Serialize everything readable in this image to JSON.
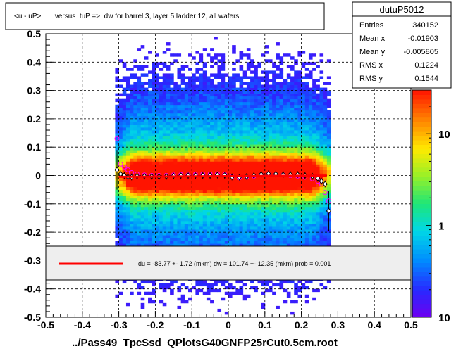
{
  "chart_data": {
    "type": "heatmap",
    "title": "<u - uP>       versus  tuP =>  dw for barrel 3, layer 5 ladder 12, all wafers",
    "xlabel": "../Pass49_TpcSsd_QPlotsG40GNFP25rCut0.5cm.root",
    "ylabel": "",
    "xlim": [
      -0.5,
      0.5
    ],
    "ylim": [
      -0.5,
      0.5
    ],
    "x_ticks": [
      "-0.5",
      "-0.4",
      "-0.3",
      "-0.2",
      "-0.1",
      "0",
      "0.1",
      "0.2",
      "0.3",
      "0.4",
      "0.5"
    ],
    "y_ticks": [
      "-0.5",
      "-0.4",
      "-0.3",
      "-0.2",
      "-0.1",
      "0",
      "0.1",
      "0.2",
      "0.3",
      "0.4",
      "0.5"
    ],
    "grid": true,
    "z_scale": "log",
    "z_ticks": [
      "1",
      "10"
    ],
    "z_ticks_values": [
      1,
      10
    ],
    "z_range": [
      0.1,
      30
    ],
    "occupied_x_range": [
      -0.31,
      0.28
    ],
    "stats": {
      "name": "dutuP5012",
      "rows": [
        {
          "label": "Entries",
          "value": "340152"
        },
        {
          "label": "Mean x",
          "value": "-0.01903"
        },
        {
          "label": "Mean y",
          "value": "-0.005805"
        },
        {
          "label": "RMS x",
          "value": "0.1224"
        },
        {
          "label": "RMS y",
          "value": "0.1544"
        }
      ]
    },
    "fit_legend": "du =  -83.77 +-  1.72 (mkm) dw =  101.74 +- 12.35 (mkm) prob = 0.001",
    "fit_line": {
      "x": [
        -0.3,
        0.27
      ],
      "y": [
        -0.0046,
        -0.0002
      ],
      "color": "#ff0000"
    },
    "profile_black": {
      "x": [
        -0.305,
        -0.295,
        -0.285,
        -0.275,
        -0.265,
        -0.25,
        -0.23,
        -0.21,
        -0.19,
        -0.17,
        -0.15,
        -0.13,
        -0.11,
        -0.09,
        -0.07,
        -0.05,
        -0.03,
        -0.01,
        0.01,
        0.03,
        0.05,
        0.07,
        0.09,
        0.11,
        0.13,
        0.15,
        0.17,
        0.19,
        0.21,
        0.23,
        0.245,
        0.255,
        0.265,
        0.275
      ],
      "y": [
        0.02,
        0.005,
        0.0,
        -0.005,
        -0.005,
        -0.002,
        -0.002,
        -0.003,
        -0.004,
        -0.003,
        -0.001,
        0.0,
        0.0,
        0.0,
        0.0,
        0.0,
        0.002,
        0.001,
        -0.005,
        -0.006,
        -0.004,
        0.0,
        0.004,
        0.006,
        0.005,
        0.003,
        0.003,
        0.003,
        0.0,
        -0.003,
        -0.01,
        -0.02,
        -0.03,
        -0.125
      ]
    },
    "profile_magenta": {
      "x": [
        -0.305,
        -0.295,
        -0.285,
        -0.275,
        -0.265,
        -0.25,
        -0.23,
        -0.21,
        -0.19,
        -0.17,
        -0.15,
        -0.13,
        -0.11,
        -0.09,
        -0.07,
        -0.05,
        -0.03,
        -0.01,
        0.01,
        0.03,
        0.05,
        0.07,
        0.09,
        0.11,
        0.13,
        0.15,
        0.17,
        0.19,
        0.21,
        0.23,
        0.245,
        0.255,
        0.265,
        0.275
      ],
      "y": [
        0.13,
        0.04,
        0.03,
        0.02,
        0.01,
        0.005,
        0.002,
        0.0,
        0.0,
        0.0,
        0.002,
        0.003,
        0.002,
        0.004,
        0.005,
        0.005,
        0.006,
        0.004,
        -0.004,
        -0.008,
        -0.006,
        -0.002,
        0.002,
        0.004,
        0.003,
        0.002,
        0.0,
        -0.002,
        -0.006,
        -0.012,
        -0.02,
        -0.03,
        -0.06,
        -0.09
      ]
    }
  }
}
